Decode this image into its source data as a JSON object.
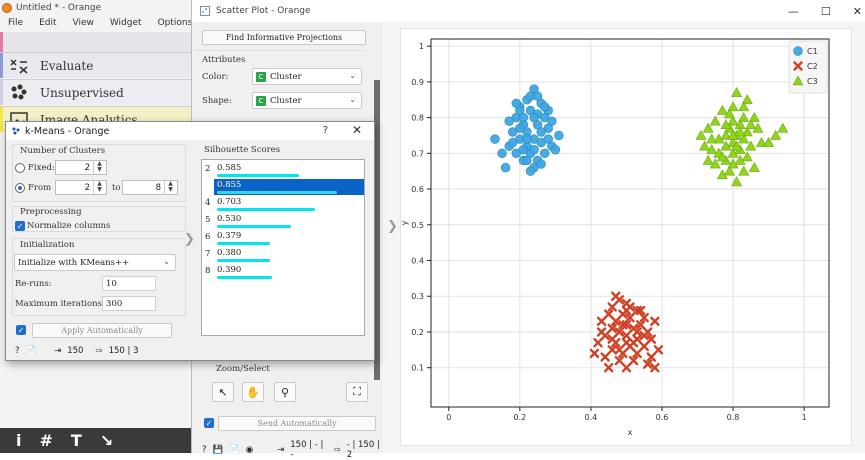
{
  "orange": {
    "title": "Untitled * - Orange",
    "menu": [
      "File",
      "Edit",
      "View",
      "Widget",
      "Options"
    ],
    "categories": [
      {
        "label": "Evaluate",
        "icon": "evaluate-icon",
        "color": "#8d9bd6"
      },
      {
        "label": "Unsupervised",
        "icon": "unsupervised-icon",
        "color": "#ced1e0"
      },
      {
        "label": "Image Analytics",
        "icon": "image-analytics-icon",
        "color": "#f4e84c"
      }
    ],
    "toolbar": [
      "i",
      "#",
      "T",
      "↘"
    ]
  },
  "scatter": {
    "title": "Scatter Plot - Orange",
    "find_projections": "Find Informative Projections",
    "attributes_title": "Attributes",
    "color_label": "Color:",
    "color_value": "Cluster",
    "shape_label": "Shape:",
    "shape_value": "Cluster",
    "zoom_title": "Zoom/Select",
    "send_auto": "Send Automatically",
    "status_in": "150 | - | -",
    "status_out": "- | 150 | 2",
    "legend": [
      {
        "name": "C1",
        "color": "#3da5e0",
        "shape": "circle"
      },
      {
        "name": "C2",
        "color": "#d04024",
        "shape": "cross"
      },
      {
        "name": "C3",
        "color": "#8fd61a",
        "shape": "triangle"
      }
    ]
  },
  "kmeans": {
    "title": "k-Means - Orange",
    "help": "?",
    "num_clusters_title": "Number of Clusters",
    "fixed_label": "Fixed:",
    "fixed_value": "2",
    "from_label": "From",
    "from_value": "2",
    "to_label": "to",
    "to_value": "8",
    "preprocessing_title": "Preprocessing",
    "normalize_label": "Normalize columns",
    "initialization_title": "Initialization",
    "init_method": "Initialize with KMeans++",
    "reruns_label": "Re-runs:",
    "reruns_value": "10",
    "maxiter_label": "Maximum iterations:",
    "maxiter_value": "300",
    "apply_label": "Apply Automatically",
    "status_in": "150",
    "status_out": "150 | 3",
    "silhouette_title": "Silhouette Scores",
    "silhouette": [
      {
        "k": "2",
        "score": "0.585",
        "value": 0.585
      },
      {
        "k": "3",
        "score": "0.855",
        "value": 0.855
      },
      {
        "k": "4",
        "score": "0.703",
        "value": 0.703
      },
      {
        "k": "5",
        "score": "0.530",
        "value": 0.53
      },
      {
        "k": "6",
        "score": "0.379",
        "value": 0.379
      },
      {
        "k": "7",
        "score": "0.380",
        "value": 0.38
      },
      {
        "k": "8",
        "score": "0.390",
        "value": 0.39
      }
    ],
    "selected_k": "3"
  },
  "chart_data": {
    "type": "scatter",
    "xlabel": "x",
    "ylabel": "y",
    "xlim": [
      -0.05,
      1.07
    ],
    "ylim": [
      -0.01,
      1.02
    ],
    "xticks": [
      "0",
      "0.2",
      "0.4",
      "0.6",
      "0.8",
      "1"
    ],
    "xtick_values": [
      0,
      0.2,
      0.4,
      0.6,
      0.8,
      1
    ],
    "yticks": [
      "0.1",
      "0.2",
      "0.3",
      "0.4",
      "0.5",
      "0.6",
      "0.7",
      "0.8",
      "0.9",
      "1"
    ],
    "ytick_values": [
      0.1,
      0.2,
      0.3,
      0.4,
      0.5,
      0.6,
      0.7,
      0.8,
      0.9,
      1.0
    ],
    "grid": true,
    "legend_position": "top-right",
    "series": [
      {
        "name": "C1",
        "color": "#3da5e0",
        "shape": "circle",
        "points": [
          [
            0.22,
            0.85
          ],
          [
            0.24,
            0.88
          ],
          [
            0.2,
            0.83
          ],
          [
            0.26,
            0.84
          ],
          [
            0.19,
            0.8
          ],
          [
            0.23,
            0.82
          ],
          [
            0.27,
            0.8
          ],
          [
            0.21,
            0.78
          ],
          [
            0.25,
            0.78
          ],
          [
            0.18,
            0.76
          ],
          [
            0.22,
            0.76
          ],
          [
            0.28,
            0.77
          ],
          [
            0.2,
            0.74
          ],
          [
            0.24,
            0.74
          ],
          [
            0.26,
            0.73
          ],
          [
            0.17,
            0.72
          ],
          [
            0.22,
            0.72
          ],
          [
            0.29,
            0.72
          ],
          [
            0.19,
            0.7
          ],
          [
            0.23,
            0.7
          ],
          [
            0.27,
            0.7
          ],
          [
            0.3,
            0.71
          ],
          [
            0.21,
            0.68
          ],
          [
            0.25,
            0.68
          ],
          [
            0.13,
            0.74
          ],
          [
            0.15,
            0.7
          ],
          [
            0.16,
            0.66
          ],
          [
            0.24,
            0.66
          ],
          [
            0.26,
            0.67
          ],
          [
            0.2,
            0.82
          ],
          [
            0.28,
            0.82
          ],
          [
            0.23,
            0.86
          ],
          [
            0.21,
            0.8
          ],
          [
            0.25,
            0.81
          ],
          [
            0.18,
            0.73
          ],
          [
            0.24,
            0.71
          ],
          [
            0.29,
            0.79
          ],
          [
            0.22,
            0.74
          ],
          [
            0.26,
            0.76
          ],
          [
            0.2,
            0.77
          ],
          [
            0.23,
            0.65
          ],
          [
            0.31,
            0.75
          ],
          [
            0.17,
            0.79
          ],
          [
            0.27,
            0.83
          ],
          [
            0.25,
            0.86
          ],
          [
            0.19,
            0.84
          ],
          [
            0.21,
            0.71
          ],
          [
            0.28,
            0.74
          ],
          [
            0.24,
            0.8
          ],
          [
            0.22,
            0.68
          ]
        ]
      },
      {
        "name": "C2",
        "color": "#d04024",
        "shape": "cross",
        "points": [
          [
            0.48,
            0.29
          ],
          [
            0.5,
            0.28
          ],
          [
            0.46,
            0.27
          ],
          [
            0.53,
            0.26
          ],
          [
            0.49,
            0.25
          ],
          [
            0.45,
            0.25
          ],
          [
            0.51,
            0.24
          ],
          [
            0.55,
            0.24
          ],
          [
            0.47,
            0.23
          ],
          [
            0.43,
            0.23
          ],
          [
            0.5,
            0.22
          ],
          [
            0.54,
            0.22
          ],
          [
            0.58,
            0.23
          ],
          [
            0.46,
            0.21
          ],
          [
            0.52,
            0.21
          ],
          [
            0.56,
            0.2
          ],
          [
            0.48,
            0.2
          ],
          [
            0.44,
            0.19
          ],
          [
            0.5,
            0.19
          ],
          [
            0.53,
            0.18
          ],
          [
            0.57,
            0.18
          ],
          [
            0.47,
            0.17
          ],
          [
            0.42,
            0.17
          ],
          [
            0.51,
            0.16
          ],
          [
            0.55,
            0.16
          ],
          [
            0.59,
            0.15
          ],
          [
            0.46,
            0.15
          ],
          [
            0.49,
            0.14
          ],
          [
            0.53,
            0.14
          ],
          [
            0.44,
            0.13
          ],
          [
            0.48,
            0.12
          ],
          [
            0.52,
            0.12
          ],
          [
            0.56,
            0.11
          ],
          [
            0.5,
            0.1
          ],
          [
            0.45,
            0.1
          ],
          [
            0.58,
            0.1
          ],
          [
            0.41,
            0.14
          ],
          [
            0.54,
            0.26
          ],
          [
            0.47,
            0.3
          ],
          [
            0.5,
            0.26
          ],
          [
            0.43,
            0.2
          ],
          [
            0.55,
            0.19
          ],
          [
            0.49,
            0.22
          ],
          [
            0.52,
            0.17
          ],
          [
            0.46,
            0.18
          ],
          [
            0.51,
            0.27
          ],
          [
            0.57,
            0.13
          ],
          [
            0.48,
            0.15
          ],
          [
            0.53,
            0.2
          ],
          [
            0.5,
            0.17
          ]
        ]
      },
      {
        "name": "C3",
        "color": "#8fd61a",
        "shape": "triangle",
        "points": [
          [
            0.81,
            0.87
          ],
          [
            0.84,
            0.85
          ],
          [
            0.8,
            0.83
          ],
          [
            0.77,
            0.82
          ],
          [
            0.83,
            0.8
          ],
          [
            0.86,
            0.8
          ],
          [
            0.8,
            0.79
          ],
          [
            0.75,
            0.79
          ],
          [
            0.82,
            0.78
          ],
          [
            0.79,
            0.77
          ],
          [
            0.73,
            0.77
          ],
          [
            0.84,
            0.76
          ],
          [
            0.87,
            0.77
          ],
          [
            0.78,
            0.75
          ],
          [
            0.81,
            0.75
          ],
          [
            0.76,
            0.74
          ],
          [
            0.83,
            0.74
          ],
          [
            0.71,
            0.75
          ],
          [
            0.8,
            0.73
          ],
          [
            0.85,
            0.72
          ],
          [
            0.78,
            0.72
          ],
          [
            0.74,
            0.71
          ],
          [
            0.82,
            0.71
          ],
          [
            0.88,
            0.73
          ],
          [
            0.76,
            0.7
          ],
          [
            0.8,
            0.7
          ],
          [
            0.84,
            0.69
          ],
          [
            0.78,
            0.68
          ],
          [
            0.82,
            0.68
          ],
          [
            0.75,
            0.67
          ],
          [
            0.8,
            0.67
          ],
          [
            0.72,
            0.72
          ],
          [
            0.86,
            0.66
          ],
          [
            0.79,
            0.65
          ],
          [
            0.83,
            0.65
          ],
          [
            0.77,
            0.64
          ],
          [
            0.81,
            0.62
          ],
          [
            0.92,
            0.75
          ],
          [
            0.9,
            0.73
          ],
          [
            0.94,
            0.77
          ],
          [
            0.74,
            0.74
          ],
          [
            0.83,
            0.83
          ],
          [
            0.79,
            0.81
          ],
          [
            0.81,
            0.72
          ],
          [
            0.77,
            0.69
          ],
          [
            0.85,
            0.78
          ],
          [
            0.73,
            0.68
          ],
          [
            0.82,
            0.76
          ],
          [
            0.78,
            0.78
          ],
          [
            0.8,
            0.75
          ]
        ]
      }
    ]
  }
}
